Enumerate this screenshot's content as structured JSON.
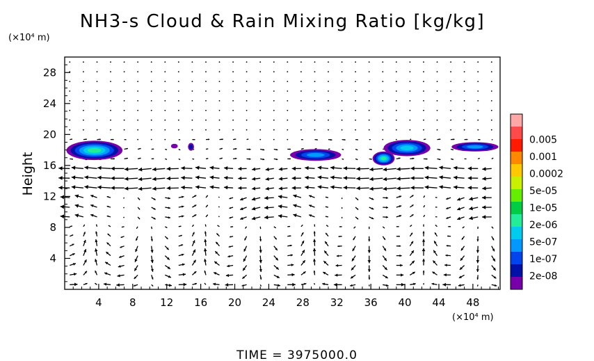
{
  "chart_data": {
    "type": "heatmap",
    "title": "NH3-s Cloud & Rain Mixing Ratio [kg/kg]",
    "ylabel": "Height",
    "xunit": "(×10⁴ m)",
    "yunit": "(×10⁴ m)",
    "time_label": "TIME = 3975000.0",
    "xlim": [
      0,
      51.2
    ],
    "ylim": [
      0,
      30
    ],
    "x_ticks": [
      "4",
      "8",
      "12",
      "16",
      "20",
      "24",
      "28",
      "32",
      "36",
      "40",
      "44",
      "48"
    ],
    "y_ticks": [
      "4",
      "8",
      "12",
      "16",
      "20",
      "24",
      "28"
    ],
    "colorbar": {
      "labels": [
        "0.005",
        "0.001",
        "0.0002",
        "5e-05",
        "1e-05",
        "2e-06",
        "5e-07",
        "1e-07",
        "2e-08"
      ],
      "colors": [
        "#ffa8a8",
        "#ff4a4a",
        "#ff1a00",
        "#ff8800",
        "#ffc800",
        "#c8f000",
        "#66ee00",
        "#00cc44",
        "#22ee99",
        "#00ccee",
        "#0099ff",
        "#0044ee",
        "#0011aa",
        "#7700aa"
      ]
    },
    "cloud_regions": [
      {
        "x": [
          0.2,
          6.8
        ],
        "y": [
          16.7,
          19.2
        ],
        "level": "1e-05"
      },
      {
        "x": [
          12.5,
          13.3
        ],
        "y": [
          18.2,
          18.8
        ],
        "level": "2e-08"
      },
      {
        "x": [
          14.5,
          15.2
        ],
        "y": [
          17.9,
          18.9
        ],
        "level": "1e-07"
      },
      {
        "x": [
          26.5,
          32.5
        ],
        "y": [
          16.6,
          18.1
        ],
        "level": "5e-07"
      },
      {
        "x": [
          36.2,
          38.8
        ],
        "y": [
          16.0,
          17.8
        ],
        "level": "1e-05"
      },
      {
        "x": [
          37.5,
          43.0
        ],
        "y": [
          17.2,
          19.3
        ],
        "level": "2e-06"
      },
      {
        "x": [
          45.5,
          51.0
        ],
        "y": [
          17.8,
          19.0
        ],
        "level": "5e-07"
      }
    ]
  }
}
